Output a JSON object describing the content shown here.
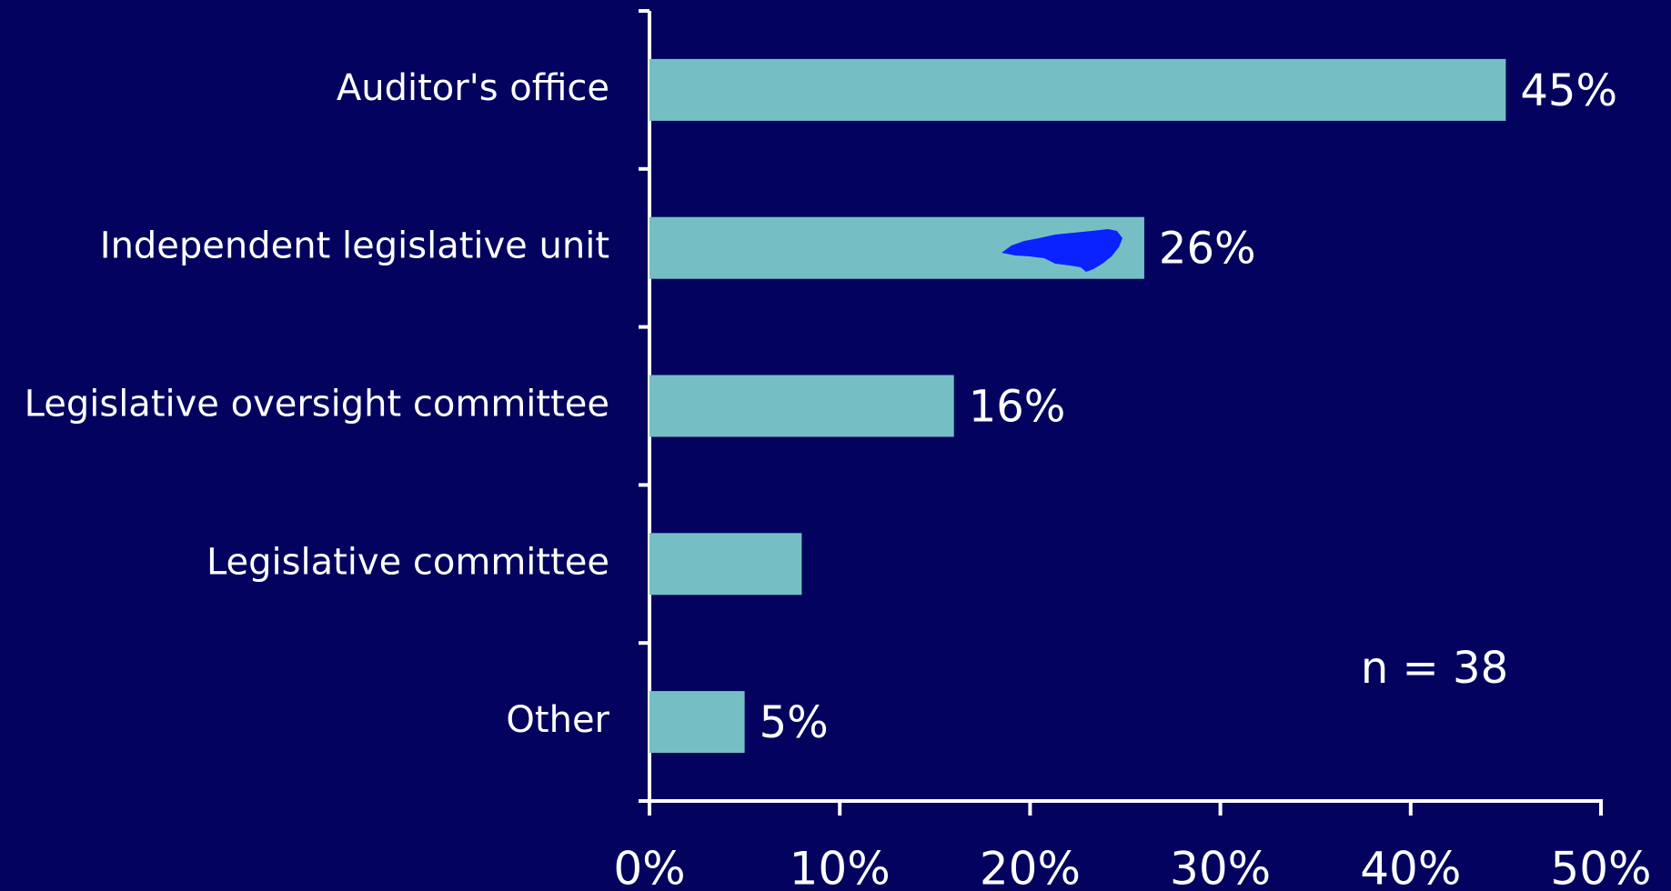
{
  "chart_data": {
    "type": "bar",
    "orientation": "horizontal",
    "categories": [
      "Auditor's office",
      "Independent legislative unit",
      "Legislative oversight committee",
      "Legislative committee",
      "Other"
    ],
    "values": [
      45,
      26,
      16,
      8,
      5
    ],
    "value_labels": [
      "45%",
      "26%",
      "16%",
      null,
      "5%"
    ],
    "color": "#75bfc4",
    "xlim": [
      0,
      50
    ],
    "xticks": [
      {
        "value": 0,
        "label": "0%"
      },
      {
        "value": 10,
        "label": "10%"
      },
      {
        "value": 20,
        "label": "20%"
      },
      {
        "value": 30,
        "label": "30%"
      },
      {
        "value": 40,
        "label": "40%"
      },
      {
        "value": 50,
        "label": "50%"
      }
    ],
    "annotation": "n = 38"
  }
}
